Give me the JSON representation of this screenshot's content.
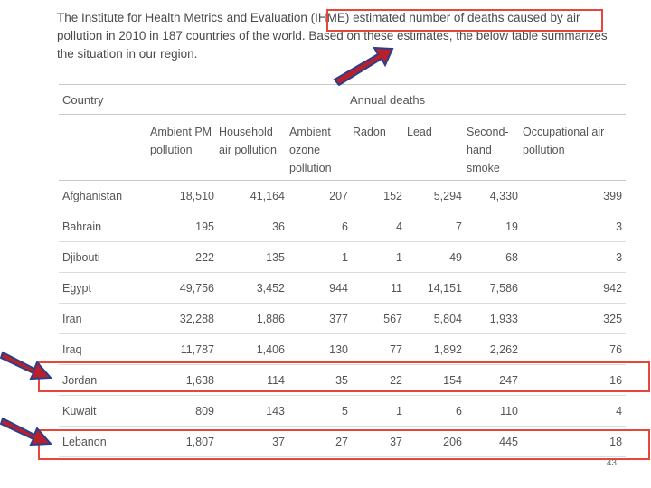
{
  "intro": {
    "text": "The Institute for Health Metrics and Evaluation (IHME) estimated number of deaths caused by air pollution in 2010 in 187 countries of the world. Based on these estimates, the below table summarizes the situation in our region."
  },
  "table": {
    "country_header": "Country",
    "group_header": "Annual deaths",
    "columns": [
      "Ambient PM pollution",
      "Household air pollution",
      "Ambient ozone pollution",
      "Radon",
      "Lead",
      "Second-hand smoke",
      "Occupational air pollution"
    ],
    "rows": [
      {
        "country": "Afghanistan",
        "values": [
          "18,510",
          "41,164",
          "207",
          "152",
          "5,294",
          "4,330",
          "399"
        ]
      },
      {
        "country": "Bahrain",
        "values": [
          "195",
          "36",
          "6",
          "4",
          "7",
          "19",
          "3"
        ]
      },
      {
        "country": "Djibouti",
        "values": [
          "222",
          "135",
          "1",
          "1",
          "49",
          "68",
          "3"
        ]
      },
      {
        "country": "Egypt",
        "values": [
          "49,756",
          "3,452",
          "944",
          "11",
          "14,151",
          "7,586",
          "942"
        ]
      },
      {
        "country": "Iran",
        "values": [
          "32,288",
          "1,886",
          "377",
          "567",
          "5,804",
          "1,933",
          "325"
        ]
      },
      {
        "country": "Iraq",
        "values": [
          "11,787",
          "1,406",
          "130",
          "77",
          "1,892",
          "2,262",
          "76"
        ]
      },
      {
        "country": "Jordan",
        "values": [
          "1,638",
          "114",
          "35",
          "22",
          "154",
          "247",
          "16"
        ]
      },
      {
        "country": "Kuwait",
        "values": [
          "809",
          "143",
          "5",
          "1",
          "6",
          "110",
          "4"
        ]
      },
      {
        "country": "Lebanon",
        "values": [
          "1,807",
          "37",
          "27",
          "37",
          "206",
          "445",
          "18"
        ]
      }
    ]
  },
  "annotations": {
    "highlight_color": "#e8463a",
    "arrow_fill": "#b8202a",
    "arrow_stroke": "#2a3f8f"
  },
  "page_number": "43"
}
